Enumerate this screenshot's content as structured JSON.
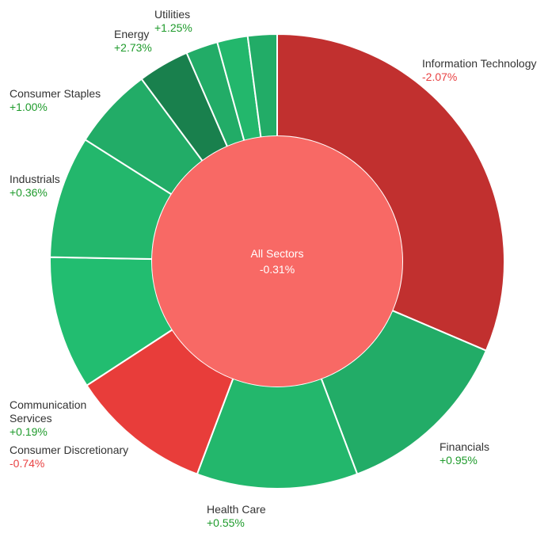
{
  "chart_data": {
    "type": "pie",
    "center": {
      "label": "All Sectors",
      "change": "-0.31%",
      "color": "#f86965"
    },
    "slices": [
      {
        "name": "Information Technology",
        "change": "-2.07%",
        "weight": 31.8,
        "color": "#c1302f",
        "change_color": "#e84142"
      },
      {
        "name": "Financials",
        "change": "+0.95%",
        "weight": 13.0,
        "color": "#22ac67",
        "change_color": "#1f9b2c"
      },
      {
        "name": "Health Care",
        "change": "+0.55%",
        "weight": 11.6,
        "color": "#23b76c",
        "change_color": "#1f9b2c"
      },
      {
        "name": "Consumer Discretionary",
        "change": "-0.74%",
        "weight": 10.2,
        "color": "#e83d3a",
        "change_color": "#e84142"
      },
      {
        "name": "Communication Services",
        "change": "+0.19%",
        "weight": 9.6,
        "color": "#22bd70",
        "change_color": "#1f9b2c"
      },
      {
        "name": "Industrials",
        "change": "+0.36%",
        "weight": 8.8,
        "color": "#23b76c",
        "change_color": "#1f9b2c"
      },
      {
        "name": "Consumer Staples",
        "change": "+1.00%",
        "weight": 5.9,
        "color": "#22ac67",
        "change_color": "#1f9b2c"
      },
      {
        "name": "Energy",
        "change": "+2.73%",
        "weight": 3.7,
        "color": "#19804d",
        "change_color": "#1f9b2c"
      },
      {
        "name": "",
        "change": "",
        "weight": 2.3,
        "color": "#22ac67",
        "change_color": "#1f9b2c"
      },
      {
        "name": "",
        "change": "",
        "weight": 2.2,
        "color": "#23b76c",
        "change_color": "#1f9b2c"
      },
      {
        "name": "Utilities",
        "change": "+1.25%",
        "weight": 2.1,
        "color": "#22ac67",
        "change_color": "#1f9b2c"
      }
    ]
  }
}
